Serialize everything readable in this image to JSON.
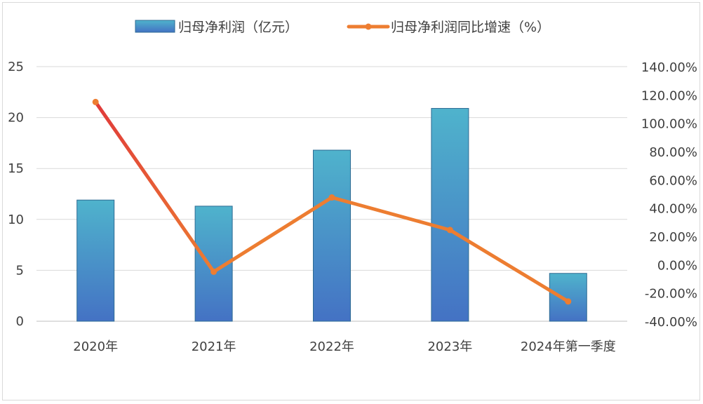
{
  "chart_data": {
    "type": "bar+line",
    "categories": [
      "2020年",
      "2021年",
      "2022年",
      "2023年",
      "2024年第一季度"
    ],
    "series": [
      {
        "name": "归母净利润（亿元）",
        "type": "bar",
        "axis": "left",
        "values": [
          11.9,
          11.3,
          16.8,
          20.9,
          4.7
        ]
      },
      {
        "name": "归母净利润同比增速（%）",
        "type": "line",
        "axis": "right",
        "values": [
          115.0,
          -5.0,
          47.5,
          24.5,
          -26.0
        ]
      }
    ],
    "left_axis": {
      "min": 0,
      "max": 25,
      "step": 5,
      "ticks": [
        "0",
        "5",
        "10",
        "15",
        "20",
        "25"
      ]
    },
    "right_axis": {
      "min": -40,
      "max": 140,
      "step": 20,
      "ticks": [
        "-40.00%",
        "-20.00%",
        "0.00%",
        "20.00%",
        "40.00%",
        "60.00%",
        "80.00%",
        "100.00%",
        "120.00%",
        "140.00%"
      ]
    },
    "grid": true,
    "legend_position": "top",
    "colors": {
      "bar_top": "#4fb3cc",
      "bar_bottom": "#4472c4",
      "bar_stroke": "#2e6b93",
      "line": "#ed7d31",
      "line_start": "#e03a3a",
      "marker": "#ed7d31",
      "grid": "#d9d9d9",
      "text": "#404040"
    }
  }
}
